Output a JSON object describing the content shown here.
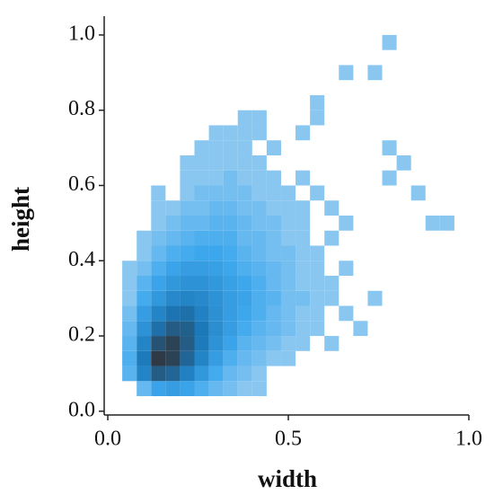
{
  "chart_data": {
    "type": "histogram2d",
    "x_label": "width",
    "y_label": "height",
    "xlim": [
      -0.01,
      1.0
    ],
    "ylim": [
      -0.01,
      1.05
    ],
    "xticks": [
      {
        "value": 0,
        "label": "0.0"
      },
      {
        "value": 0.5,
        "label": "0.5"
      },
      {
        "value": 1,
        "label": "1.0"
      }
    ],
    "yticks": [
      {
        "value": 0,
        "label": "0.0"
      },
      0.2,
      0.4,
      0.6,
      0.8,
      {
        "value": 1,
        "label": "1.0"
      }
    ],
    "colors": [
      "#b8daf3",
      "#3ea8ee",
      "#1b78b8",
      "#2e3a46"
    ],
    "xbins": [
      0,
      0.04,
      0.08,
      0.12,
      0.16,
      0.2,
      0.24,
      0.28,
      0.32,
      0.36,
      0.4,
      0.44,
      0.48,
      0.52,
      0.56,
      0.6,
      0.64,
      0.68,
      0.72,
      0.76,
      0.8,
      0.84,
      0.88,
      0.92,
      0.96,
      1.0
    ],
    "ybins": [
      0,
      0.04,
      0.08,
      0.12,
      0.16,
      0.2,
      0.24,
      0.28,
      0.32,
      0.36,
      0.4,
      0.44,
      0.48,
      0.52,
      0.56,
      0.6,
      0.64,
      0.68,
      0.72,
      0.76,
      0.8,
      0.84,
      0.88,
      0.92,
      0.96,
      1.0
    ],
    "counts": [
      [
        0,
        0,
        0,
        0,
        0,
        0,
        0,
        0,
        0,
        0,
        0,
        0,
        0,
        0,
        0,
        0,
        0,
        0,
        0,
        0,
        0,
        0,
        0,
        0,
        0
      ],
      [
        0,
        0,
        3,
        8,
        10,
        8,
        5,
        3,
        2,
        1,
        1,
        0,
        0,
        0,
        0,
        0,
        0,
        0,
        0,
        0,
        0,
        0,
        0,
        0,
        0
      ],
      [
        0,
        4,
        20,
        40,
        35,
        22,
        12,
        6,
        3,
        2,
        1,
        0,
        0,
        0,
        0,
        0,
        0,
        0,
        0,
        0,
        0,
        0,
        0,
        0,
        0
      ],
      [
        0,
        5,
        25,
        60,
        55,
        35,
        20,
        10,
        5,
        3,
        2,
        1,
        1,
        0,
        0,
        0,
        0,
        0,
        0,
        0,
        0,
        0,
        0,
        0,
        0
      ],
      [
        0,
        4,
        20,
        45,
        55,
        40,
        25,
        14,
        8,
        4,
        3,
        2,
        1,
        1,
        0,
        1,
        0,
        0,
        0,
        0,
        0,
        0,
        0,
        0,
        0
      ],
      [
        0,
        3,
        14,
        30,
        40,
        38,
        26,
        16,
        10,
        6,
        4,
        3,
        2,
        1,
        1,
        0,
        0,
        1,
        0,
        0,
        0,
        0,
        0,
        0,
        0
      ],
      [
        0,
        2,
        10,
        20,
        28,
        30,
        22,
        15,
        10,
        7,
        5,
        3,
        2,
        1,
        1,
        0,
        1,
        0,
        0,
        0,
        0,
        0,
        0,
        0,
        0
      ],
      [
        0,
        1,
        6,
        12,
        18,
        20,
        18,
        14,
        10,
        8,
        5,
        4,
        2,
        2,
        1,
        1,
        0,
        0,
        1,
        0,
        0,
        0,
        0,
        0,
        0
      ],
      [
        0,
        1,
        4,
        8,
        12,
        14,
        14,
        12,
        9,
        7,
        5,
        3,
        2,
        1,
        1,
        1,
        0,
        0,
        0,
        0,
        0,
        0,
        0,
        0,
        0
      ],
      [
        0,
        1,
        2,
        5,
        8,
        10,
        10,
        9,
        7,
        5,
        4,
        3,
        2,
        1,
        1,
        0,
        1,
        0,
        0,
        0,
        0,
        0,
        0,
        0,
        0
      ],
      [
        0,
        0,
        1,
        3,
        5,
        6,
        7,
        7,
        6,
        4,
        3,
        2,
        2,
        1,
        1,
        0,
        0,
        0,
        0,
        0,
        0,
        0,
        0,
        0,
        0
      ],
      [
        0,
        0,
        1,
        2,
        3,
        4,
        5,
        5,
        5,
        3,
        3,
        2,
        1,
        1,
        0,
        1,
        0,
        0,
        0,
        0,
        0,
        0,
        0,
        0,
        0
      ],
      [
        0,
        0,
        0,
        1,
        2,
        3,
        3,
        4,
        4,
        3,
        2,
        2,
        1,
        1,
        0,
        0,
        1,
        0,
        0,
        0,
        0,
        0,
        1,
        1,
        0
      ],
      [
        0,
        0,
        0,
        1,
        1,
        2,
        2,
        3,
        3,
        2,
        2,
        1,
        1,
        1,
        0,
        1,
        0,
        0,
        0,
        0,
        0,
        0,
        0,
        0,
        0
      ],
      [
        0,
        0,
        0,
        1,
        0,
        1,
        2,
        2,
        2,
        2,
        1,
        1,
        1,
        0,
        1,
        0,
        0,
        0,
        0,
        0,
        0,
        1,
        0,
        0,
        0
      ],
      [
        0,
        0,
        0,
        0,
        0,
        1,
        1,
        1,
        2,
        1,
        1,
        1,
        0,
        1,
        0,
        0,
        0,
        0,
        0,
        1,
        0,
        0,
        0,
        0,
        0
      ],
      [
        0,
        0,
        0,
        0,
        0,
        1,
        1,
        1,
        1,
        1,
        1,
        0,
        0,
        0,
        0,
        0,
        0,
        0,
        0,
        0,
        1,
        0,
        0,
        0,
        0
      ],
      [
        0,
        0,
        0,
        0,
        0,
        0,
        1,
        1,
        1,
        1,
        0,
        1,
        0,
        0,
        0,
        0,
        0,
        0,
        0,
        1,
        0,
        0,
        0,
        0,
        0
      ],
      [
        0,
        0,
        0,
        0,
        0,
        0,
        0,
        1,
        1,
        1,
        1,
        0,
        0,
        1,
        0,
        0,
        0,
        0,
        0,
        0,
        0,
        0,
        0,
        0,
        0
      ],
      [
        0,
        0,
        0,
        0,
        0,
        0,
        0,
        0,
        0,
        1,
        1,
        0,
        0,
        0,
        1,
        0,
        0,
        0,
        0,
        0,
        0,
        0,
        0,
        0,
        0
      ],
      [
        0,
        0,
        0,
        0,
        0,
        0,
        0,
        0,
        0,
        0,
        0,
        0,
        0,
        0,
        1,
        0,
        0,
        0,
        0,
        0,
        0,
        0,
        0,
        0,
        0
      ],
      [
        0,
        0,
        0,
        0,
        0,
        0,
        0,
        0,
        0,
        0,
        0,
        0,
        0,
        0,
        0,
        0,
        0,
        0,
        0,
        0,
        0,
        0,
        0,
        0,
        0
      ],
      [
        0,
        0,
        0,
        0,
        0,
        0,
        0,
        0,
        0,
        0,
        0,
        0,
        0,
        0,
        0,
        0,
        1,
        0,
        1,
        0,
        0,
        0,
        0,
        0,
        0
      ],
      [
        0,
        0,
        0,
        0,
        0,
        0,
        0,
        0,
        0,
        0,
        0,
        0,
        0,
        0,
        0,
        0,
        0,
        0,
        0,
        0,
        0,
        0,
        0,
        0,
        0
      ],
      [
        0,
        0,
        0,
        0,
        0,
        0,
        0,
        0,
        0,
        0,
        0,
        0,
        0,
        0,
        0,
        0,
        0,
        0,
        0,
        1,
        0,
        0,
        0,
        0,
        0
      ]
    ]
  }
}
